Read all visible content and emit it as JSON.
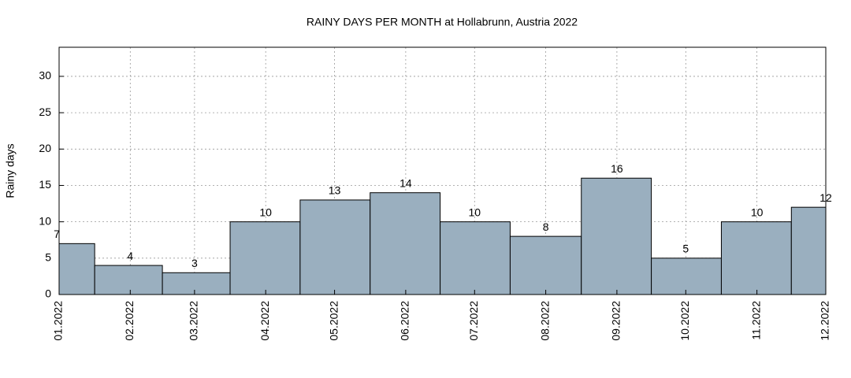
{
  "chart_data": {
    "type": "bar",
    "title": "RAINY DAYS PER MONTH at Hollabrunn, Austria 2022",
    "ylabel": "Rainy days",
    "x": [
      "01.2022",
      "02.2022",
      "03.2022",
      "04.2022",
      "05.2022",
      "06.2022",
      "07.2022",
      "08.2022",
      "09.2022",
      "10.2022",
      "11.2022",
      "12.2022"
    ],
    "values": [
      7,
      4,
      3,
      10,
      13,
      14,
      10,
      8,
      16,
      5,
      10,
      12
    ],
    "color": "#9aafbf",
    "xlim": [
      "01.2022",
      "12.2022"
    ],
    "ylim": [
      0,
      34
    ],
    "yticks": [
      0,
      5,
      10,
      15,
      20,
      25,
      30
    ],
    "grid": true
  }
}
